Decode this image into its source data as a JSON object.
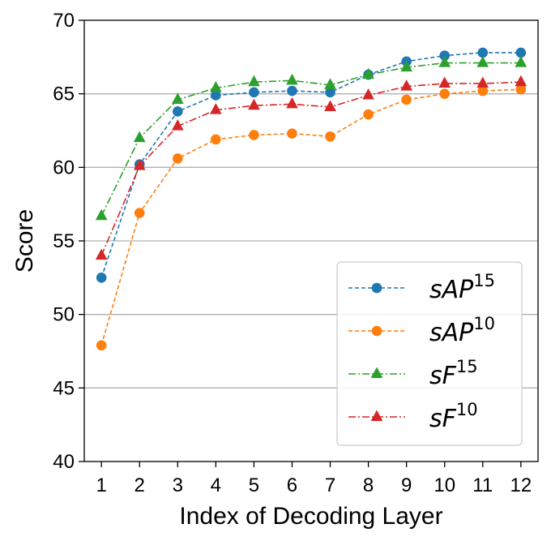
{
  "chart_data": {
    "type": "line",
    "xlabel": "Index of Decoding Layer",
    "ylabel": "Score",
    "x": [
      1,
      2,
      3,
      4,
      5,
      6,
      7,
      8,
      9,
      10,
      11,
      12
    ],
    "ylim": [
      40,
      70
    ],
    "yticks": [
      40,
      45,
      50,
      55,
      60,
      65,
      70
    ],
    "grid": "horizontal",
    "legend_position": "lower-right",
    "series": [
      {
        "name": "sAP",
        "sup": "15",
        "color": "#1f77b4",
        "marker": "circle",
        "dash": "5,3",
        "values": [
          52.5,
          60.2,
          63.8,
          64.9,
          65.1,
          65.2,
          65.1,
          66.3,
          67.2,
          67.6,
          67.8,
          67.8
        ]
      },
      {
        "name": "sAP",
        "sup": "10",
        "color": "#ff7f0e",
        "marker": "circle",
        "dash": "5,3",
        "values": [
          47.9,
          56.9,
          60.6,
          61.9,
          62.2,
          62.3,
          62.1,
          63.6,
          64.6,
          65.0,
          65.2,
          65.3
        ]
      },
      {
        "name": "sF",
        "sup": "15",
        "color": "#2ca02c",
        "marker": "triangle",
        "dash": "9,3,2,3",
        "values": [
          56.7,
          62.0,
          64.6,
          65.4,
          65.8,
          65.9,
          65.6,
          66.3,
          66.8,
          67.1,
          67.1,
          67.1
        ]
      },
      {
        "name": "sF",
        "sup": "10",
        "color": "#d62728",
        "marker": "triangle",
        "dash": "9,3,2,3",
        "values": [
          54.0,
          60.1,
          62.8,
          63.9,
          64.2,
          64.3,
          64.1,
          64.9,
          65.5,
          65.7,
          65.7,
          65.8
        ]
      }
    ]
  }
}
